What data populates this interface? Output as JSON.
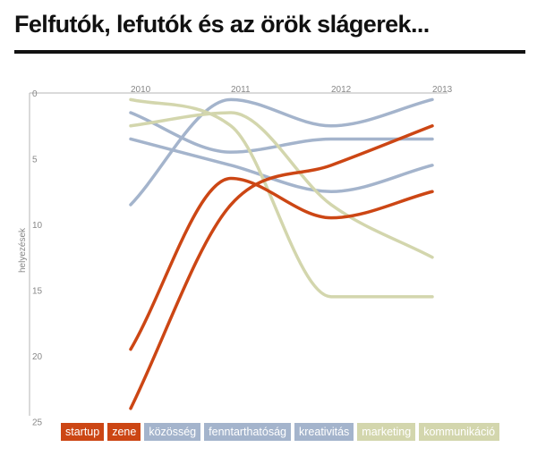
{
  "title": "Felfutók, lefutók és az örök slágerek...",
  "colors": {
    "startup": "#cc4614",
    "blue": "#a4b4cc",
    "olive": "#d3d6ad",
    "axis": "#b5b5b5",
    "text": "#888888",
    "title": "#111111"
  },
  "chart_data": {
    "type": "line",
    "title": "Felfutók, lefutók és az örök slágerek...",
    "xlabel": "",
    "ylabel": "helyezések",
    "x": [
      2010,
      2011,
      2012,
      2013
    ],
    "x_tick_labels": [
      "2010",
      "2011",
      "2012",
      "2013"
    ],
    "y_tick_labels": [
      "0",
      "5",
      "10",
      "15",
      "20",
      "25"
    ],
    "y_ticks": [
      0,
      5,
      10,
      15,
      20,
      25
    ],
    "ylim": [
      0,
      25.5
    ],
    "y_inverted": true,
    "grid": false,
    "legend_position": "bottom",
    "series": [
      {
        "name": "startup",
        "color": "#cc4614",
        "values": [
          24,
          8.5,
          5.5,
          2.5
        ]
      },
      {
        "name": "zene",
        "color": "#cc4614",
        "values": [
          19.5,
          6.5,
          9.5,
          7.5
        ]
      },
      {
        "name": "közösség",
        "color": "#a4b4cc",
        "values": [
          8.5,
          0.5,
          2.5,
          0.5
        ]
      },
      {
        "name": "fenntarthatóság",
        "color": "#a4b4cc",
        "values": [
          3.5,
          5.5,
          7.5,
          5.5
        ]
      },
      {
        "name": "kreativitás",
        "color": "#a4b4cc",
        "values": [
          1.5,
          4.5,
          3.5,
          3.5
        ]
      },
      {
        "name": "marketing",
        "color": "#d3d6ad",
        "values": [
          2.5,
          1.5,
          8.5,
          12.5
        ]
      },
      {
        "name": "kommunikáció",
        "color": "#d3d6ad",
        "values": [
          0.5,
          2.5,
          15.5,
          15.5
        ]
      }
    ]
  }
}
